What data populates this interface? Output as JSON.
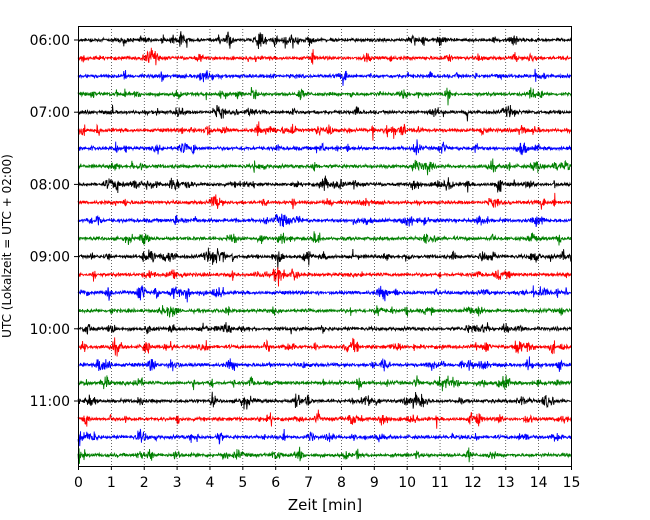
{
  "chart_data": {
    "type": "line",
    "title": "",
    "xlabel": "Zeit  [min]",
    "ylabel": "UTC (Lokalzeit = UTC + 02:00)",
    "xlim": [
      0,
      15
    ],
    "x_ticks": [
      0,
      1,
      2,
      3,
      4,
      5,
      6,
      7,
      8,
      9,
      10,
      11,
      12,
      13,
      14,
      15
    ],
    "y_tick_labels": [
      "06:00",
      "07:00",
      "08:00",
      "09:00",
      "10:00",
      "11:00"
    ],
    "traces_per_hour": 4,
    "trace_interval_minutes": 15,
    "grid": "vertical dotted at each minute",
    "trace_colors": [
      "#000000",
      "#ff0000",
      "#0000ff",
      "#008000"
    ],
    "traces": [
      {
        "start": "06:00",
        "color": "#000000"
      },
      {
        "start": "06:15",
        "color": "#ff0000"
      },
      {
        "start": "06:30",
        "color": "#0000ff"
      },
      {
        "start": "06:45",
        "color": "#008000"
      },
      {
        "start": "07:00",
        "color": "#000000"
      },
      {
        "start": "07:15",
        "color": "#ff0000"
      },
      {
        "start": "07:30",
        "color": "#0000ff"
      },
      {
        "start": "07:45",
        "color": "#008000"
      },
      {
        "start": "08:00",
        "color": "#000000"
      },
      {
        "start": "08:15",
        "color": "#ff0000"
      },
      {
        "start": "08:30",
        "color": "#0000ff"
      },
      {
        "start": "08:45",
        "color": "#008000"
      },
      {
        "start": "09:00",
        "color": "#000000"
      },
      {
        "start": "09:15",
        "color": "#ff0000"
      },
      {
        "start": "09:30",
        "color": "#0000ff"
      },
      {
        "start": "09:45",
        "color": "#008000"
      },
      {
        "start": "10:00",
        "color": "#000000"
      },
      {
        "start": "10:15",
        "color": "#ff0000"
      },
      {
        "start": "10:30",
        "color": "#0000ff"
      },
      {
        "start": "10:45",
        "color": "#008000"
      },
      {
        "start": "11:00",
        "color": "#000000"
      },
      {
        "start": "11:15",
        "color": "#ff0000"
      },
      {
        "start": "11:30",
        "color": "#0000ff"
      },
      {
        "start": "11:45",
        "color": "#008000"
      }
    ]
  }
}
